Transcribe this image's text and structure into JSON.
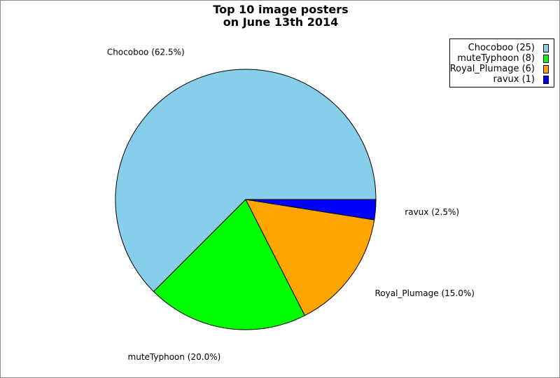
{
  "chart_data": {
    "type": "pie",
    "title": "Top 10 image posters",
    "subtitle": "on June 13th 2014",
    "legend_position": "top-right",
    "slices": [
      {
        "name": "Chocoboo",
        "value": 25,
        "legend_label": "Chocoboo (25)",
        "slice_label": "Chocoboo (62.5%)",
        "color": "#87CEEB"
      },
      {
        "name": "muteTyphoon",
        "value": 8,
        "legend_label": "muteTyphoon (8)",
        "slice_label": "muteTyphoon (20.0%)",
        "color": "#00FF00"
      },
      {
        "name": "Royal_Plumage",
        "value": 6,
        "legend_label": "Royal_Plumage (6)",
        "slice_label": "Royal_Plumage (15.0%)",
        "color": "#FFA500"
      },
      {
        "name": "ravux",
        "value": 1,
        "legend_label": "ravux (1)",
        "slice_label": "ravux (2.5%)",
        "color": "#0000FF"
      }
    ]
  }
}
